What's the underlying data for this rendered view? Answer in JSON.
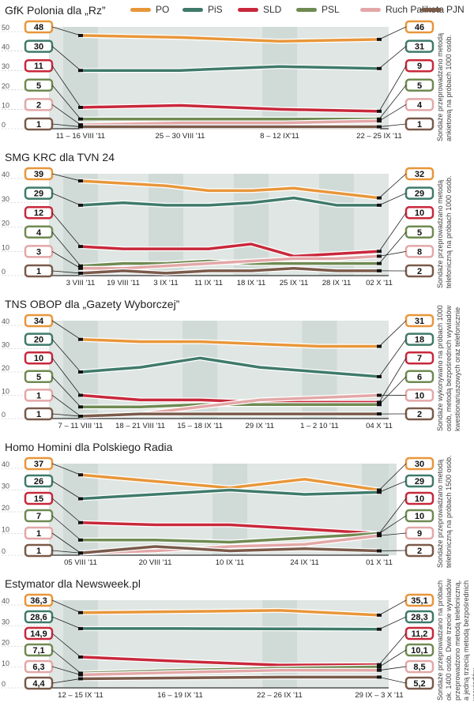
{
  "legend": [
    {
      "name": "PO",
      "color": "#e8963a"
    },
    {
      "name": "PiS",
      "color": "#3f7a6a"
    },
    {
      "name": "SLD",
      "color": "#c8283b"
    },
    {
      "name": "PSL",
      "color": "#6f8a52"
    },
    {
      "name": "Ruch Palikota",
      "color": "#e3a7a7"
    },
    {
      "name": "PJN",
      "color": "#7a5a4a"
    }
  ],
  "chart_data": [
    {
      "type": "line",
      "title": "GfK Polonia dla „Rz”",
      "note": "Sondaże przeprowadzano metodą ankietową na próbach 1000 osób.",
      "x": [
        "11 – 16 VIII '11",
        "25 – 30 VIII '11",
        "8 – 12 IX'11",
        "22 – 25 IX '11"
      ],
      "ylim": [
        0,
        50
      ],
      "yticks": [
        0,
        10,
        20,
        30,
        40,
        50
      ],
      "series": [
        {
          "name": "PO",
          "color": "#e8963a",
          "values": [
            48,
            47,
            45,
            46
          ],
          "start": "48",
          "end": "46"
        },
        {
          "name": "PiS",
          "color": "#3f7a6a",
          "values": [
            30,
            30,
            32,
            31
          ],
          "start": "30",
          "end": "31"
        },
        {
          "name": "SLD",
          "color": "#c8283b",
          "values": [
            11,
            12,
            10,
            9
          ],
          "start": "11",
          "end": "9"
        },
        {
          "name": "PSL",
          "color": "#6f8a52",
          "values": [
            5,
            5,
            5,
            5
          ],
          "start": "5",
          "end": "5"
        },
        {
          "name": "Ruch Palikota",
          "color": "#e3a7a7",
          "values": [
            2,
            3,
            3,
            4
          ],
          "start": "2",
          "end": "4"
        },
        {
          "name": "PJN",
          "color": "#7a5a4a",
          "values": [
            1,
            1,
            1,
            1
          ],
          "start": "1",
          "end": "1"
        }
      ]
    },
    {
      "type": "line",
      "title": "SMG KRC dla TVN 24",
      "note": "Sondaże przeprowadzano metodą telefoniczną na próbach 1000 osób.",
      "x": [
        "3 VIII '11",
        "19 VIII '11",
        "3 IX '11",
        "11 IX '11",
        "18 IX '11",
        "25 IX '11",
        "28 IX '11",
        "02 X '11"
      ],
      "ylim": [
        0,
        40
      ],
      "yticks": [
        0,
        10,
        20,
        30,
        40
      ],
      "series": [
        {
          "name": "PO",
          "color": "#e8963a",
          "values": [
            39,
            38,
            37,
            35,
            35,
            36,
            34,
            32
          ],
          "start": "39",
          "end": "32"
        },
        {
          "name": "PiS",
          "color": "#3f7a6a",
          "values": [
            29,
            30,
            29,
            29,
            30,
            32,
            29,
            29
          ],
          "start": "29",
          "end": "29"
        },
        {
          "name": "SLD",
          "color": "#c8283b",
          "values": [
            12,
            11,
            11,
            11,
            13,
            8,
            9,
            10
          ],
          "start": "12",
          "end": "10"
        },
        {
          "name": "PSL",
          "color": "#6f8a52",
          "values": [
            4,
            5,
            5,
            6,
            5,
            5,
            5,
            5
          ],
          "start": "4",
          "end": "5"
        },
        {
          "name": "Ruch Palikota",
          "color": "#e3a7a7",
          "values": [
            3,
            3,
            4,
            5,
            6,
            7,
            7,
            8
          ],
          "start": "3",
          "end": "8"
        },
        {
          "name": "PJN",
          "color": "#7a5a4a",
          "values": [
            1,
            2,
            1,
            2,
            2,
            3,
            2,
            2
          ],
          "start": "1",
          "end": "2"
        }
      ]
    },
    {
      "type": "line",
      "title": "TNS OBOP dla „Gazety Wyborczej”",
      "note": "Sondaże wykonywano na próbach 1000 osób, metodą bezpośrednich wywiadów kwestionariuszowych oraz telefonicznie",
      "x": [
        "7 – 11 VIII '11",
        "18 – 21 VIII '11",
        "15 – 18 IX '11",
        "29 IX '11",
        "1 – 2 10 '11",
        "04 X '11"
      ],
      "ylim": [
        0,
        40
      ],
      "yticks": [
        0,
        10,
        20,
        30,
        40
      ],
      "series": [
        {
          "name": "PO",
          "color": "#e8963a",
          "values": [
            34,
            33,
            33,
            32,
            31,
            31
          ],
          "start": "34",
          "end": "31"
        },
        {
          "name": "PiS",
          "color": "#3f7a6a",
          "values": [
            20,
            22,
            26,
            22,
            20,
            18
          ],
          "start": "20",
          "end": "18"
        },
        {
          "name": "SLD",
          "color": "#c8283b",
          "values": [
            10,
            8,
            8,
            7,
            7,
            7
          ],
          "start": "10",
          "end": "7"
        },
        {
          "name": "PSL",
          "color": "#6f8a52",
          "values": [
            5,
            5,
            6,
            6,
            6,
            6
          ],
          "start": "5",
          "end": "6"
        },
        {
          "name": "Ruch Palikota",
          "color": "#e3a7a7",
          "values": [
            1,
            2,
            5,
            8,
            9,
            10
          ],
          "start": "1",
          "end": "10"
        },
        {
          "name": "PJN",
          "color": "#7a5a4a",
          "values": [
            1,
            2,
            2,
            2,
            2,
            2
          ],
          "start": "1",
          "end": "2"
        }
      ]
    },
    {
      "type": "line",
      "title": "Homo Homini dla Polskiego Radia",
      "note": "Sondaże przeprowadzano metodą telefoniczną na próbach 1500 osób.",
      "x": [
        "05 VIII '11",
        "20 VIII '11",
        "10 IX '11",
        "24 IX '11",
        "01 X '11"
      ],
      "ylim": [
        0,
        40
      ],
      "yticks": [
        0,
        10,
        20,
        30,
        40
      ],
      "series": [
        {
          "name": "PO",
          "color": "#e8963a",
          "values": [
            37,
            34,
            31,
            35,
            30
          ],
          "start": "37",
          "end": "30"
        },
        {
          "name": "PiS",
          "color": "#3f7a6a",
          "values": [
            26,
            28,
            30,
            28,
            29
          ],
          "start": "26",
          "end": "29"
        },
        {
          "name": "SLD",
          "color": "#c8283b",
          "values": [
            15,
            14,
            14,
            12,
            10
          ],
          "start": "15",
          "end": "10"
        },
        {
          "name": "PSL",
          "color": "#6f8a52",
          "values": [
            7,
            7,
            6,
            8,
            10
          ],
          "start": "7",
          "end": "10"
        },
        {
          "name": "Ruch Palikota",
          "color": "#e3a7a7",
          "values": [
            1,
            2,
            4,
            5,
            9
          ],
          "start": "1",
          "end": "9"
        },
        {
          "name": "PJN",
          "color": "#7a5a4a",
          "values": [
            1,
            4,
            2,
            3,
            2
          ],
          "start": "1",
          "end": "2"
        }
      ]
    },
    {
      "type": "line",
      "title": "Estymator dla Newsweek.pl",
      "note": "Sondaże przeprowadzano na próbach ok. 1400 osób. Dwie trzecie wywiadów przeprowadzono metodą telefoniczną, a jedną trzecią metodą bezpośrednich wywiadów.",
      "x": [
        "12 – 15 IX '11",
        "16 – 19 IX '11",
        "22 – 26 IX '11",
        "29 IX – 3 X '11"
      ],
      "ylim": [
        0,
        40
      ],
      "yticks": [
        0,
        10,
        20,
        30,
        40
      ],
      "series": [
        {
          "name": "PO",
          "color": "#e8963a",
          "values": [
            36.3,
            36.8,
            37.4,
            35.1
          ],
          "start": "36,3",
          "end": "35,1"
        },
        {
          "name": "PiS",
          "color": "#3f7a6a",
          "values": [
            28.6,
            28.6,
            28.5,
            28.3
          ],
          "start": "28,6",
          "end": "28,3"
        },
        {
          "name": "SLD",
          "color": "#c8283b",
          "values": [
            14.9,
            12.8,
            11.0,
            11.2
          ],
          "start": "14,9",
          "end": "11,2"
        },
        {
          "name": "PSL",
          "color": "#6f8a52",
          "values": [
            7.1,
            8.5,
            9.5,
            10.1
          ],
          "start": "7,1",
          "end": "10,1"
        },
        {
          "name": "Ruch Palikota",
          "color": "#e3a7a7",
          "values": [
            6.3,
            7.5,
            8.5,
            8.5
          ],
          "start": "6,3",
          "end": "8,5"
        },
        {
          "name": "PJN",
          "color": "#7a5a4a",
          "values": [
            4.4,
            4.8,
            5.2,
            5.2
          ],
          "start": "4,4",
          "end": "5,2"
        }
      ]
    }
  ]
}
